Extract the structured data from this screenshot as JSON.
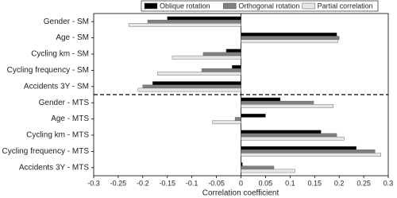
{
  "chart_data": {
    "type": "hbar",
    "xlabel": "Correlation coefficient",
    "categories": [
      "Gender - SM",
      "Age - SM",
      "Cycling km - SM",
      "Cycling frequency - SM",
      "Accidents 3Y - SM",
      "Gender - MTS",
      "Age - MTS",
      "Cycling km - MTS",
      "Cycling frequency - MTS",
      "Accidents 3Y - MTS"
    ],
    "series": [
      {
        "name": "Oblique rotation",
        "color": "#000000",
        "values": [
          -0.15,
          0.195,
          -0.03,
          -0.018,
          -0.18,
          0.08,
          0.05,
          0.163,
          0.235,
          0.003
        ]
      },
      {
        "name": "Orthogonal rotation",
        "color": "#808080",
        "values": [
          -0.19,
          0.2,
          -0.077,
          -0.08,
          -0.2,
          0.148,
          -0.012,
          0.195,
          0.273,
          0.067
        ]
      },
      {
        "name": "Partial correlation",
        "color": "#e6e6e6",
        "values": [
          -0.228,
          0.197,
          -0.14,
          -0.17,
          -0.21,
          0.188,
          -0.058,
          0.21,
          0.285,
          0.11
        ]
      }
    ],
    "xlim": [
      -0.3,
      0.3
    ],
    "xticks": [
      -0.3,
      -0.25,
      -0.2,
      -0.15,
      -0.1,
      -0.05,
      0,
      0.05,
      0.1,
      0.15,
      0.2,
      0.25,
      0.3
    ],
    "legend": "top"
  }
}
